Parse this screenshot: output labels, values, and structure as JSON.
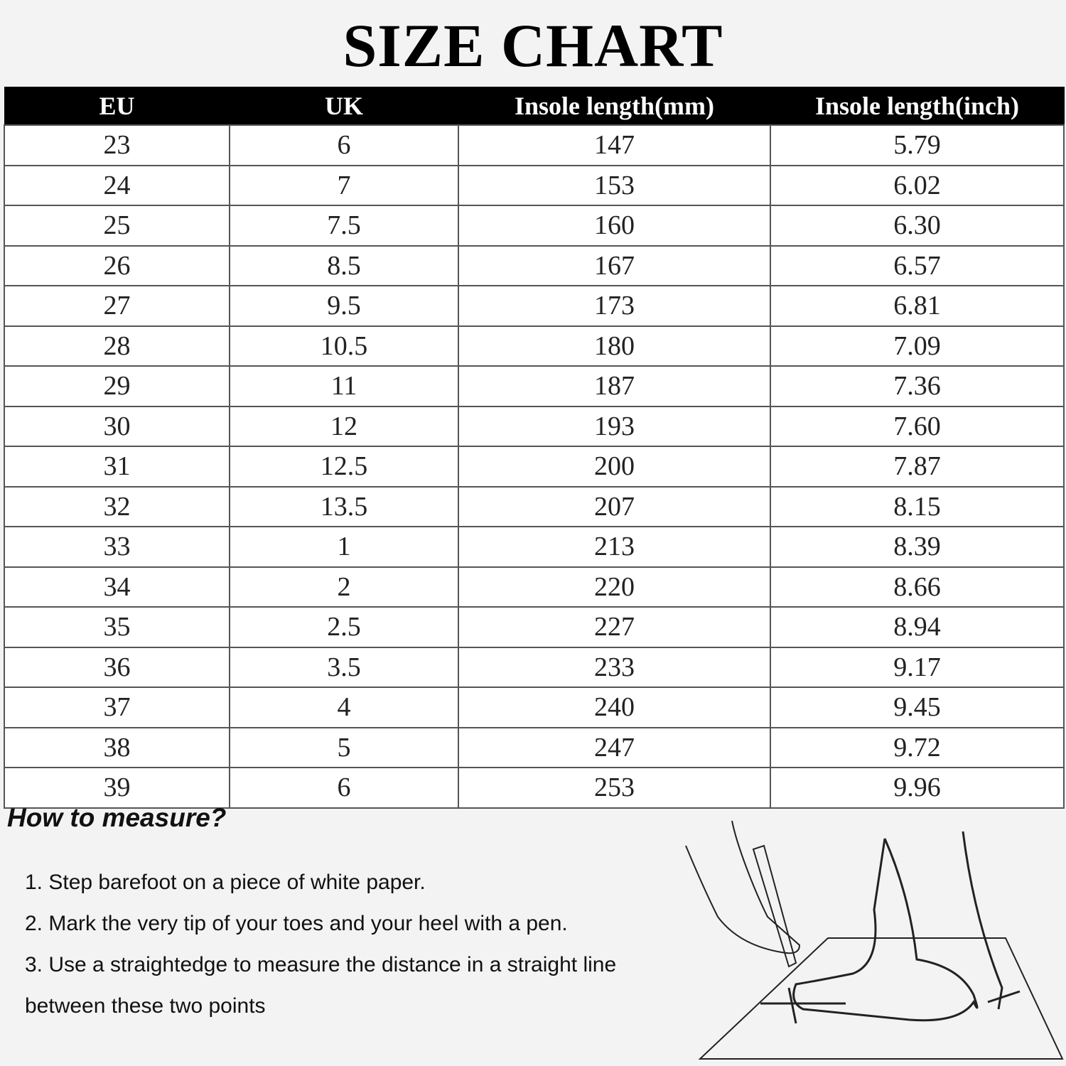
{
  "title": "SIZE CHART",
  "table": {
    "headers": [
      "EU",
      "UK",
      "Insole length(mm)",
      "Insole length(inch)"
    ],
    "rows": [
      [
        "23",
        "6",
        "147",
        "5.79"
      ],
      [
        "24",
        "7",
        "153",
        "6.02"
      ],
      [
        "25",
        "7.5",
        "160",
        "6.30"
      ],
      [
        "26",
        "8.5",
        "167",
        "6.57"
      ],
      [
        "27",
        "9.5",
        "173",
        "6.81"
      ],
      [
        "28",
        "10.5",
        "180",
        "7.09"
      ],
      [
        "29",
        "11",
        "187",
        "7.36"
      ],
      [
        "30",
        "12",
        "193",
        "7.60"
      ],
      [
        "31",
        "12.5",
        "200",
        "7.87"
      ],
      [
        "32",
        "13.5",
        "207",
        "8.15"
      ],
      [
        "33",
        "1",
        "213",
        "8.39"
      ],
      [
        "34",
        "2",
        "220",
        "8.66"
      ],
      [
        "35",
        "2.5",
        "227",
        "8.94"
      ],
      [
        "36",
        "3.5",
        "233",
        "9.17"
      ],
      [
        "37",
        "4",
        "240",
        "9.45"
      ],
      [
        "38",
        "5",
        "247",
        "9.72"
      ],
      [
        "39",
        "6",
        "253",
        "9.96"
      ]
    ]
  },
  "how_to": {
    "heading": "How to measure?",
    "steps": [
      "1. Step barefoot on a piece of white paper.",
      "2. Mark the very tip of your toes and your heel with a pen.",
      "3. Use a straightedge to measure the distance in a straight line",
      "between these two points"
    ]
  },
  "colors": {
    "header_bg": "#000000",
    "header_text": "#ffffff",
    "background": "#f3f3f3"
  }
}
